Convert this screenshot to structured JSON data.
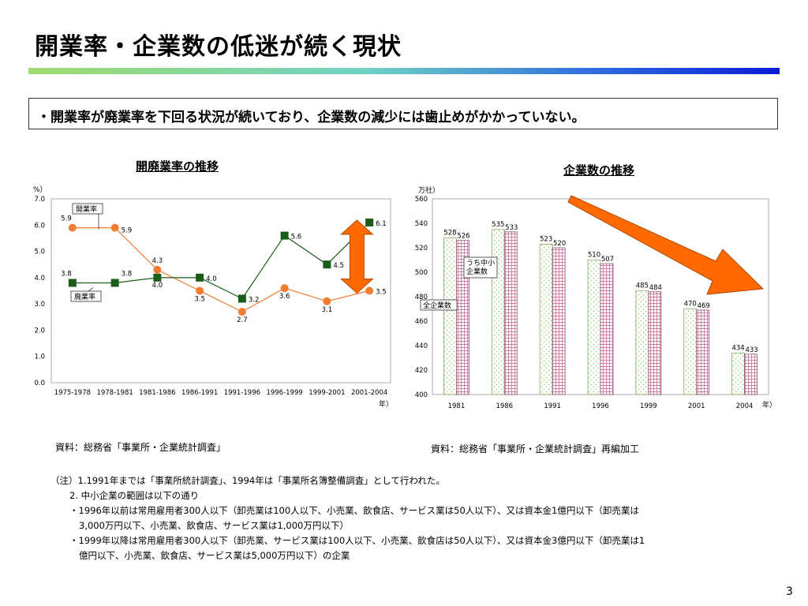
{
  "title": "開業率・企業数の低迷が続く現状",
  "summary": "・開業率が廃業率を下回る状況が続いており、企業数の減少には歯止めがかかっていない。",
  "page_number": "3",
  "colors": {
    "open_rate": "#f07d32",
    "close_rate": "#1a5c1a",
    "arrow": "#ff6a00",
    "total_bar": "#9ad47a",
    "sme_bar": "#c45a8a"
  },
  "chart_data": [
    {
      "type": "line",
      "title": "開廃業率の推移",
      "ylabel": "%）",
      "xlabel": "年）",
      "categories": [
        "1975-1978",
        "1978-1981",
        "1981-1986",
        "1986-1991",
        "1991-1996",
        "1996-1999",
        "1999-2001",
        "2001-2004"
      ],
      "ylim": [
        0,
        7
      ],
      "yticks": [
        "0.0",
        "1.0",
        "2.0",
        "3.0",
        "4.0",
        "5.0",
        "6.0",
        "7.0"
      ],
      "series": [
        {
          "name": "開業率",
          "values": [
            5.9,
            5.9,
            4.3,
            3.5,
            2.7,
            3.6,
            3.1,
            3.5
          ],
          "labels": [
            "5.9",
            "5.9",
            "4.3",
            "3.5",
            "2.7",
            "3.6",
            "3.1",
            "3.5"
          ]
        },
        {
          "name": "廃業率",
          "values": [
            3.8,
            3.8,
            4.0,
            4.0,
            3.2,
            5.6,
            4.5,
            6.1
          ],
          "labels": [
            "3.8",
            "3.8",
            "4.0",
            "4.0",
            "3.2",
            "5.6",
            "4.5",
            "6.1"
          ]
        }
      ],
      "source": "資料：総務省「事業所・企業統計調査」"
    },
    {
      "type": "bar",
      "title": "企業数の推移",
      "ylabel": "万社）",
      "xlabel": "年）",
      "categories": [
        "1981",
        "1986",
        "1991",
        "1996",
        "1999",
        "2001",
        "2004"
      ],
      "ylim": [
        400,
        560
      ],
      "yticks": [
        "400",
        "420",
        "440",
        "460",
        "480",
        "500",
        "520",
        "540",
        "560"
      ],
      "series": [
        {
          "name": "全企業数",
          "values": [
            528,
            535,
            523,
            510,
            485,
            470,
            434
          ]
        },
        {
          "name": "うち中小企業数",
          "values": [
            526,
            533,
            520,
            507,
            484,
            469,
            433
          ]
        }
      ],
      "source": "資料：総務省「事業所・企業統計調査」再編加工"
    }
  ],
  "notes": [
    "（注）1.1991年までは「事業所統計調査」、1994年は「事業所名簿整備調査」として行われた。",
    "2. 中小企業の範囲は以下の通り",
    "・1996年以前は常用雇用者300人以下（卸売業は100人以下、小売業、飲食店、サービス業は50人以下）、又は資本金1億円以下（卸売業は",
    "3,000万円以下、小売業、飲食店、サービス業は1,000万円以下）",
    "・1999年以降は常用雇用者300人以下（卸売業、サービス業は100人以下、小売業、飲食店は50人以下）、又は資本金3億円以下（卸売業は1",
    "億円以下、小売業、飲食店、サービス業は5,000万円以下）の企業"
  ]
}
